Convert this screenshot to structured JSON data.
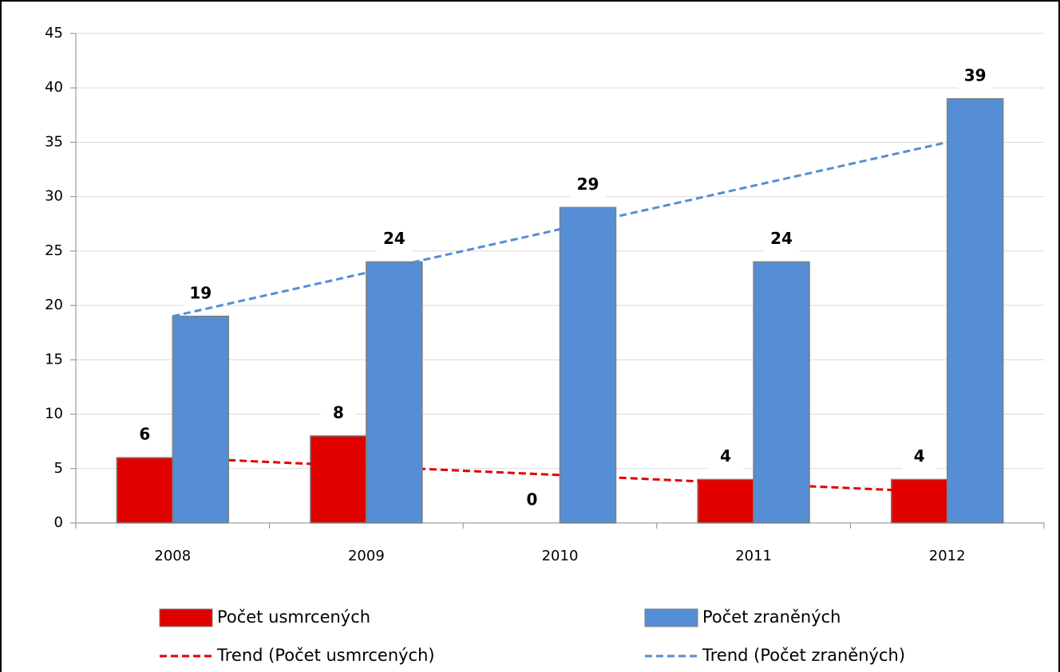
{
  "chart_data": {
    "type": "bar",
    "categories": [
      "2008",
      "2009",
      "2010",
      "2011",
      "2012"
    ],
    "series": [
      {
        "name": "Počet usmrcených",
        "color": "#e00000",
        "values": [
          6,
          8,
          0,
          4,
          4
        ]
      },
      {
        "name": "Počet zraněných",
        "color": "#558ed5",
        "values": [
          19,
          24,
          29,
          24,
          39
        ]
      }
    ],
    "trend_labels": [
      "Trend (Počet usmrcených)",
      "Trend (Počet zraněných)"
    ],
    "ylim": [
      0,
      45
    ],
    "yticks": [
      0,
      5,
      10,
      15,
      20,
      25,
      30,
      35,
      40,
      45
    ],
    "grid": true
  }
}
